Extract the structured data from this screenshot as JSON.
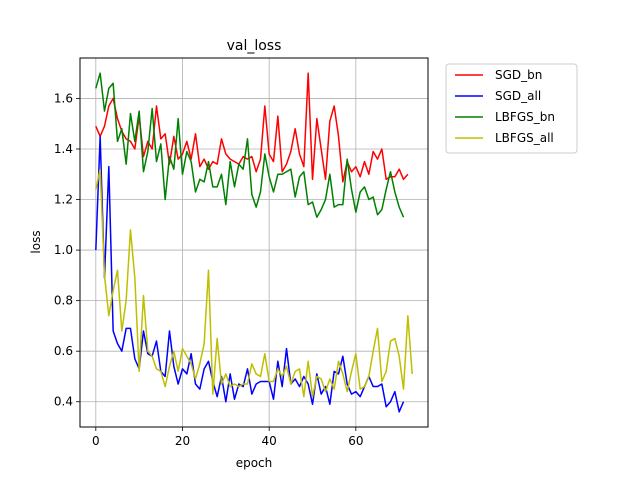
{
  "chart_data": {
    "type": "line",
    "title": "val_loss",
    "xlabel": "epoch",
    "ylabel": "loss",
    "xlim": [
      -3.65,
      76.65
    ],
    "ylim": [
      0.3,
      1.76
    ],
    "xticks": [
      0,
      20,
      40,
      60
    ],
    "yticks": [
      0.4,
      0.6,
      0.8,
      1.0,
      1.2,
      1.4,
      1.6
    ],
    "xtick_labels": [
      "0",
      "20",
      "40",
      "60"
    ],
    "ytick_labels": [
      "0.4",
      "0.6",
      "0.8",
      "1.0",
      "1.2",
      "1.4",
      "1.6"
    ],
    "grid": true,
    "legend_position": "outside upper right",
    "series": [
      {
        "name": "SGD_bn",
        "color": "#ff0000",
        "values": [
          1.49,
          1.45,
          1.49,
          1.57,
          1.6,
          1.52,
          1.47,
          1.44,
          1.43,
          1.4,
          1.53,
          1.37,
          1.43,
          1.4,
          1.57,
          1.44,
          1.46,
          1.34,
          1.45,
          1.36,
          1.38,
          1.43,
          1.36,
          1.46,
          1.33,
          1.36,
          1.32,
          1.35,
          1.34,
          1.44,
          1.38,
          1.36,
          1.35,
          1.34,
          1.37,
          1.36,
          1.37,
          1.31,
          1.36,
          1.57,
          1.38,
          1.35,
          1.53,
          1.31,
          1.34,
          1.39,
          1.48,
          1.38,
          1.33,
          1.7,
          1.28,
          1.52,
          1.4,
          1.28,
          1.51,
          1.57,
          1.45,
          1.27,
          1.35,
          1.31,
          1.33,
          1.29,
          1.35,
          1.3,
          1.39,
          1.36,
          1.4,
          1.28,
          1.29,
          1.29,
          1.32,
          1.28,
          1.3
        ]
      },
      {
        "name": "SGD_all",
        "color": "#0000ff",
        "values": [
          1.0,
          1.45,
          0.89,
          1.33,
          0.68,
          0.63,
          0.6,
          0.69,
          0.69,
          0.57,
          0.53,
          0.68,
          0.59,
          0.58,
          0.64,
          0.52,
          0.5,
          0.68,
          0.54,
          0.47,
          0.53,
          0.51,
          0.59,
          0.47,
          0.45,
          0.53,
          0.56,
          0.48,
          0.42,
          0.5,
          0.4,
          0.51,
          0.41,
          0.47,
          0.46,
          0.53,
          0.43,
          0.47,
          0.48,
          0.48,
          0.48,
          0.41,
          0.56,
          0.46,
          0.61,
          0.47,
          0.49,
          0.46,
          0.5,
          0.47,
          0.39,
          0.51,
          0.43,
          0.46,
          0.39,
          0.52,
          0.51,
          0.58,
          0.47,
          0.43,
          0.44,
          0.42,
          0.46,
          0.5,
          0.46,
          0.46,
          0.47,
          0.38,
          0.4,
          0.44,
          0.36,
          0.4
        ]
      },
      {
        "name": "LBFGS_bn",
        "color": "#008000",
        "values": [
          1.64,
          1.7,
          1.55,
          1.64,
          1.66,
          1.43,
          1.48,
          1.34,
          1.54,
          1.43,
          1.55,
          1.31,
          1.39,
          1.56,
          1.35,
          1.42,
          1.2,
          1.37,
          1.32,
          1.52,
          1.3,
          1.39,
          1.35,
          1.23,
          1.28,
          1.27,
          1.35,
          1.25,
          1.25,
          1.3,
          1.18,
          1.35,
          1.25,
          1.34,
          1.32,
          1.44,
          1.22,
          1.17,
          1.23,
          1.38,
          1.29,
          1.23,
          1.3,
          1.3,
          1.31,
          1.32,
          1.21,
          1.29,
          1.31,
          1.18,
          1.19,
          1.13,
          1.16,
          1.2,
          1.3,
          1.17,
          1.18,
          1.18,
          1.36,
          1.24,
          1.15,
          1.23,
          1.25,
          1.2,
          1.21,
          1.14,
          1.16,
          1.24,
          1.31,
          1.23,
          1.17,
          1.13
        ]
      },
      {
        "name": "LBFGS_all",
        "color": "#bfbf00",
        "values": [
          1.24,
          1.32,
          0.9,
          0.74,
          0.84,
          0.92,
          0.68,
          0.8,
          1.08,
          0.89,
          0.52,
          0.82,
          0.6,
          0.58,
          0.53,
          0.52,
          0.46,
          0.54,
          0.6,
          0.52,
          0.61,
          0.58,
          0.55,
          0.49,
          0.55,
          0.63,
          0.92,
          0.43,
          0.65,
          0.47,
          0.51,
          0.46,
          0.47,
          0.46,
          0.47,
          0.47,
          0.55,
          0.51,
          0.5,
          0.59,
          0.48,
          0.48,
          0.53,
          0.5,
          0.54,
          0.47,
          0.52,
          0.53,
          0.42,
          0.56,
          0.42,
          0.5,
          0.49,
          0.44,
          0.49,
          0.45,
          0.56,
          0.51,
          0.44,
          0.52,
          0.59,
          0.45,
          0.46,
          0.5,
          0.6,
          0.69,
          0.48,
          0.52,
          0.64,
          0.65,
          0.58,
          0.45,
          0.74,
          0.51
        ]
      }
    ]
  }
}
